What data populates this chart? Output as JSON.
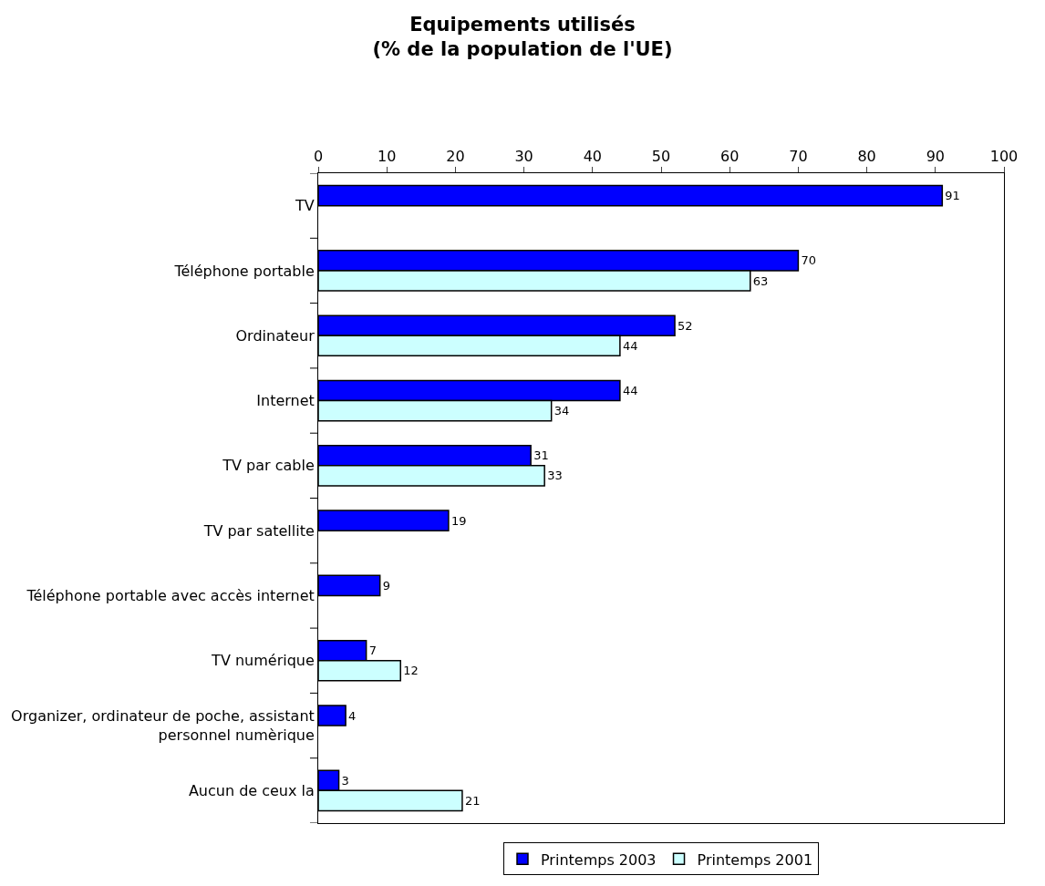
{
  "chart_data": {
    "type": "bar",
    "orientation": "horizontal",
    "title": "Equipements utilisés\n(% de la population de l'UE)",
    "categories": [
      "TV",
      "Téléphone portable",
      "Ordinateur",
      "Internet",
      "TV par cable",
      "TV par satellite",
      "Téléphone portable avec accès internet",
      "TV numérique",
      "Organizer, ordinateur de poche, assistant personnel numèrique",
      "Aucun de ceux la"
    ],
    "series": [
      {
        "name": "Printemps 2003",
        "color": "#0000ff",
        "values": [
          91,
          70,
          52,
          44,
          31,
          19,
          9,
          7,
          4,
          3
        ]
      },
      {
        "name": "Printemps 2001",
        "color": "#ccffff",
        "values": [
          null,
          63,
          44,
          34,
          33,
          null,
          null,
          12,
          null,
          21
        ]
      }
    ],
    "xlim": [
      0,
      100
    ],
    "xticks": [
      0,
      10,
      20,
      30,
      40,
      50,
      60,
      70,
      80,
      90,
      100
    ],
    "data_labels": true,
    "legend": "bottom",
    "grid": false
  }
}
